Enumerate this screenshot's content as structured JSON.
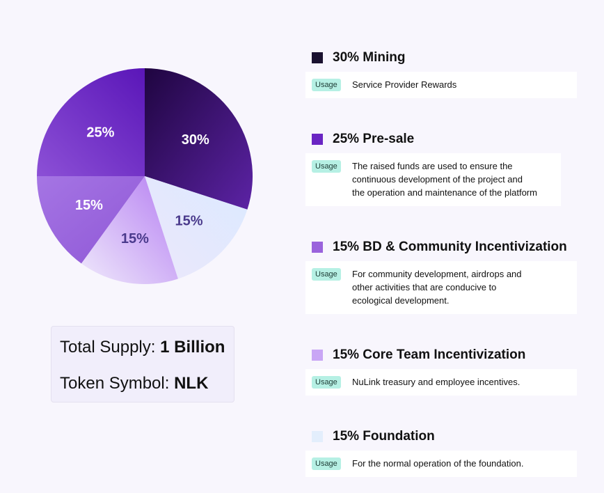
{
  "chart_data": {
    "type": "pie",
    "slices": [
      {
        "name": "Mining",
        "value": 30,
        "label": "30%",
        "color": "#2a0a4f"
      },
      {
        "name": "Foundation",
        "value": 15,
        "label": "15%",
        "color": "#dfeaff"
      },
      {
        "name": "Core Team Incentivization",
        "value": 15,
        "label": "15%",
        "color": "#c9a6f5"
      },
      {
        "name": "BD & Community Incentivization",
        "value": 15,
        "label": "15%",
        "color": "#9a63dc"
      },
      {
        "name": "Pre-sale",
        "value": 25,
        "label": "25%",
        "color": "#6a25c3"
      }
    ]
  },
  "supply": {
    "total_label": "Total Supply:",
    "total_value": "1 Billion",
    "symbol_label": "Token Symbol:",
    "symbol_value": "NLK"
  },
  "legend": [
    {
      "title": "30% Mining",
      "color": "#1b1230",
      "badge": "Usage",
      "lines": [
        "Service Provider Rewards"
      ]
    },
    {
      "title": "25% Pre-sale",
      "color": "#6a25c3",
      "badge": "Usage",
      "lines": [
        "The raised funds are used to ensure the",
        "continuous development of the project and",
        "the operation and maintenance of the platform"
      ]
    },
    {
      "title": "15% BD & Community Incentivization",
      "color": "#9a63dc",
      "badge": "Usage",
      "lines": [
        "For community development, airdrops and",
        "other activities that are conducive to",
        "ecological development."
      ]
    },
    {
      "title": "15% Core Team Incentivization",
      "color": "#c9a6f5",
      "badge": "Usage",
      "lines": [
        "NuLink treasury and employee incentives."
      ]
    },
    {
      "title": "15% Foundation",
      "color": "#e3eefc",
      "badge": "Usage",
      "lines": [
        "For the normal operation of the foundation."
      ]
    }
  ]
}
